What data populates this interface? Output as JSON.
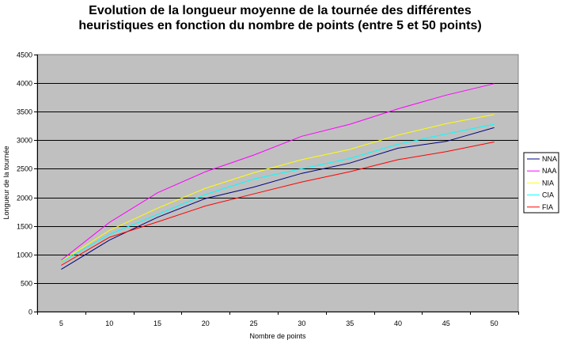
{
  "chart_data": {
    "type": "line",
    "title_line1": "Evolution de la longueur moyenne de la tournée des différentes",
    "title_line2": "heuristiques en fonction du nombre de points (entre 5 et 50 points)",
    "xlabel": "Nombre de points",
    "ylabel": "Longueur de la tournée",
    "x": [
      5,
      10,
      15,
      20,
      25,
      30,
      35,
      40,
      45,
      50
    ],
    "ylim": [
      0,
      4500
    ],
    "yticks": [
      0,
      500,
      1000,
      1500,
      2000,
      2500,
      3000,
      3500,
      4000,
      4500
    ],
    "grid": true,
    "legend_position": "right",
    "plot_background": "#c0c0c0",
    "series": [
      {
        "name": "NNA",
        "color": "#000080",
        "values": [
          740,
          1250,
          1650,
          1980,
          2180,
          2420,
          2600,
          2860,
          2980,
          3220
        ]
      },
      {
        "name": "NAA",
        "color": "#ff00ff",
        "values": [
          900,
          1560,
          2080,
          2450,
          2740,
          3070,
          3280,
          3550,
          3790,
          3990
        ]
      },
      {
        "name": "NIA",
        "color": "#ffff00",
        "values": [
          880,
          1420,
          1810,
          2160,
          2430,
          2660,
          2840,
          3090,
          3290,
          3450
        ]
      },
      {
        "name": "CIA",
        "color": "#00ffff",
        "values": [
          870,
          1350,
          1700,
          2050,
          2320,
          2500,
          2680,
          2930,
          3110,
          3280
        ]
      },
      {
        "name": "FIA",
        "color": "#ff0000",
        "values": [
          810,
          1300,
          1570,
          1850,
          2060,
          2270,
          2450,
          2660,
          2800,
          2970
        ]
      }
    ]
  }
}
